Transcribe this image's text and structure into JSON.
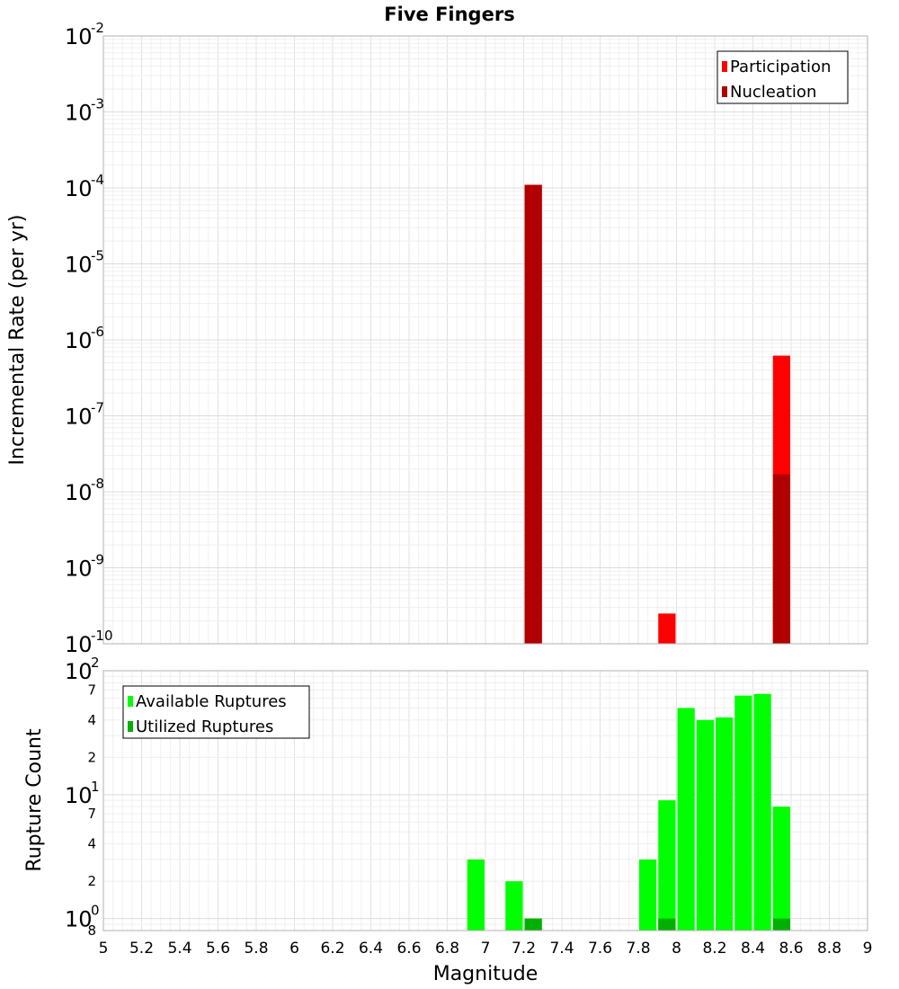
{
  "chart_data": {
    "title": "Five Fingers",
    "xlabel": "Magnitude",
    "xlim": [
      5,
      9
    ],
    "xticks": [
      "5",
      "5.2",
      "5.4",
      "5.6",
      "5.8",
      "6",
      "6.2",
      "6.4",
      "6.6",
      "6.8",
      "7",
      "7.2",
      "7.4",
      "7.6",
      "7.8",
      "8",
      "8.2",
      "8.4",
      "8.6",
      "8.8",
      "9"
    ],
    "bin_width": 0.1,
    "grid": true,
    "panels": [
      {
        "type": "bar",
        "yscale": "log",
        "ylabel": "Incremental Rate (per yr)",
        "ylim": [
          1e-10,
          0.01
        ],
        "yticks": [
          {
            "base": "10",
            "exp": "-2",
            "value": 0.01
          },
          {
            "base": "10",
            "exp": "-3",
            "value": 0.001
          },
          {
            "base": "10",
            "exp": "-4",
            "value": 0.0001
          },
          {
            "base": "10",
            "exp": "-5",
            "value": 1e-05
          },
          {
            "base": "10",
            "exp": "-6",
            "value": 1e-06
          },
          {
            "base": "10",
            "exp": "-7",
            "value": 1e-07
          },
          {
            "base": "10",
            "exp": "-8",
            "value": 1e-08
          },
          {
            "base": "10",
            "exp": "-9",
            "value": 1e-09
          },
          {
            "base": "10",
            "exp": "-10",
            "value": 1e-10
          }
        ],
        "legend_position": "top-right",
        "series": [
          {
            "name": "Participation",
            "color": "#ff0000",
            "points": [
              {
                "x": 7.25,
                "y": 0.00011
              },
              {
                "x": 7.95,
                "y": 2.5e-10
              },
              {
                "x": 8.55,
                "y": 6.2e-07
              }
            ]
          },
          {
            "name": "Nucleation",
            "color": "#b00000",
            "points": [
              {
                "x": 7.25,
                "y": 0.00011
              },
              {
                "x": 8.55,
                "y": 1.7e-08
              }
            ]
          }
        ]
      },
      {
        "type": "bar",
        "yscale": "log",
        "ylabel": "Rupture Count",
        "ylim": [
          0.8,
          100
        ],
        "yticks": [
          {
            "base": "10",
            "exp": "2",
            "value": 100
          },
          {
            "base": "10",
            "exp": "1",
            "value": 10
          },
          {
            "base": "10",
            "exp": "0",
            "value": 1
          }
        ],
        "yminor_labels": [
          {
            "label": "7",
            "value": 70
          },
          {
            "label": "4",
            "value": 40
          },
          {
            "label": "2",
            "value": 20
          },
          {
            "label": "7",
            "value": 7
          },
          {
            "label": "4",
            "value": 4
          },
          {
            "label": "2",
            "value": 2
          },
          {
            "label": "8",
            "value": 0.8
          }
        ],
        "legend_position": "top-left",
        "series": [
          {
            "name": "Available Ruptures",
            "color": "#00ff00",
            "points": [
              {
                "x": 6.95,
                "y": 3
              },
              {
                "x": 7.15,
                "y": 2
              },
              {
                "x": 7.25,
                "y": 1
              },
              {
                "x": 7.85,
                "y": 3
              },
              {
                "x": 7.95,
                "y": 9
              },
              {
                "x": 8.05,
                "y": 50
              },
              {
                "x": 8.15,
                "y": 40
              },
              {
                "x": 8.25,
                "y": 42
              },
              {
                "x": 8.35,
                "y": 63
              },
              {
                "x": 8.45,
                "y": 65
              },
              {
                "x": 8.55,
                "y": 8
              }
            ]
          },
          {
            "name": "Utilized Ruptures",
            "color": "#00b000",
            "points": [
              {
                "x": 7.25,
                "y": 1
              },
              {
                "x": 7.95,
                "y": 1
              },
              {
                "x": 8.55,
                "y": 1
              }
            ]
          }
        ]
      }
    ]
  }
}
